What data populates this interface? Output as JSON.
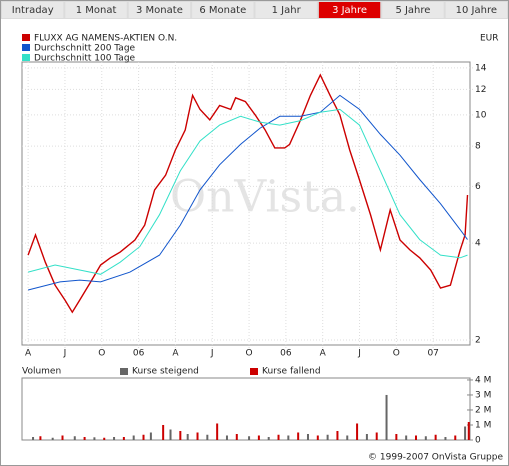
{
  "tabs": [
    "Intraday",
    "1 Monat",
    "3 Monate",
    "6 Monate",
    "1 Jahr",
    "3 Jahre",
    "5 Jahre",
    "10 Jahre"
  ],
  "active_tab": 5,
  "watermark": "OnVista.",
  "copyright": "© 1999-2007 OnVista Gruppe",
  "chart_data": [
    {
      "type": "line",
      "unit": "EUR",
      "log_scale": true,
      "grid": true,
      "xlim": [
        -0.5,
        36.0
      ],
      "ylim": [
        1.93,
        14.6
      ],
      "xticks": [
        {
          "value": 0,
          "label": "A"
        },
        {
          "value": 3,
          "label": "J"
        },
        {
          "value": 6,
          "label": "O"
        },
        {
          "value": 9,
          "label": "06"
        },
        {
          "value": 12,
          "label": "A"
        },
        {
          "value": 15,
          "label": "J"
        },
        {
          "value": 18,
          "label": "O"
        },
        {
          "value": 21,
          "label": "06"
        },
        {
          "value": 24,
          "label": "A"
        },
        {
          "value": 27,
          "label": "J"
        },
        {
          "value": 30,
          "label": "O"
        },
        {
          "value": 33,
          "label": "07"
        }
      ],
      "yticks": [
        2,
        4,
        6,
        8,
        10,
        12,
        14
      ],
      "series": [
        {
          "name": "FLUXX AG NAMENS-AKTIEN O.N.",
          "color": "#cc0000",
          "x": [
            0,
            0.6,
            1.4,
            2.2,
            3.0,
            3.6,
            4.2,
            5.1,
            5.9,
            6.7,
            7.5,
            8.7,
            9.5,
            10.3,
            11.2,
            12.0,
            12.8,
            13.4,
            14.0,
            14.8,
            15.6,
            16.5,
            16.9,
            17.7,
            18.5,
            19.3,
            20.1,
            20.9,
            21.3,
            22.2,
            23.0,
            23.8,
            24.6,
            25.4,
            26.2,
            27.0,
            27.9,
            28.7,
            29.5,
            30.3,
            31.1,
            31.9,
            32.8,
            33.6,
            34.4,
            35.2,
            35.6,
            35.8
          ],
          "values": [
            3.67,
            4.24,
            3.49,
            2.96,
            2.66,
            2.44,
            2.66,
            3.03,
            3.42,
            3.6,
            3.75,
            4.09,
            4.55,
            5.85,
            6.5,
            7.78,
            8.98,
            11.5,
            10.4,
            9.65,
            10.7,
            10.4,
            11.3,
            11.0,
            10.0,
            9.0,
            7.9,
            7.9,
            8.1,
            9.65,
            11.5,
            13.3,
            11.5,
            10.0,
            7.78,
            6.28,
            4.89,
            3.81,
            5.07,
            4.09,
            3.81,
            3.6,
            3.3,
            2.9,
            2.96,
            3.81,
            4.24,
            5.64
          ]
        },
        {
          "name": "Durchschnitt 200 Tage",
          "color": "#1155cc",
          "x": [
            0,
            2.6,
            4.2,
            5.9,
            8.3,
            10.7,
            12.4,
            14.0,
            15.6,
            17.3,
            18.9,
            20.5,
            22.2,
            23.8,
            25.4,
            27.0,
            28.7,
            30.3,
            31.9,
            33.6,
            35.2,
            35.8
          ],
          "values": [
            2.86,
            3.03,
            3.07,
            3.03,
            3.25,
            3.67,
            4.55,
            5.85,
            7.0,
            8.1,
            9.1,
            9.9,
            9.9,
            10.2,
            11.5,
            10.4,
            8.7,
            7.5,
            6.3,
            5.3,
            4.4,
            4.1
          ]
        },
        {
          "name": "Durchschnitt 100 Tage",
          "color": "#33e0c8",
          "x": [
            0,
            2.2,
            4.2,
            5.9,
            7.5,
            9.1,
            10.7,
            12.4,
            14.0,
            15.6,
            17.3,
            18.9,
            20.5,
            22.2,
            23.8,
            25.4,
            27.0,
            28.7,
            30.3,
            31.9,
            33.6,
            35.2,
            35.8
          ],
          "values": [
            3.25,
            3.42,
            3.3,
            3.2,
            3.49,
            3.9,
            4.9,
            6.7,
            8.3,
            9.3,
            9.9,
            9.5,
            9.3,
            9.6,
            10.2,
            10.4,
            9.3,
            6.7,
            4.9,
            4.1,
            3.67,
            3.6,
            3.67
          ]
        }
      ]
    },
    {
      "type": "bar",
      "title": "Volumen",
      "grid": false,
      "xlim": [
        -0.5,
        36.0
      ],
      "ylim": [
        0,
        4130000
      ],
      "yticks": [
        0,
        {
          "value": 1000000,
          "label": "1 M"
        },
        {
          "value": 2000000,
          "label": "2 M"
        },
        {
          "value": 3000000,
          "label": "3 M"
        },
        {
          "value": 4000000,
          "label": "4 M"
        }
      ],
      "series": [
        {
          "name": "Kurse steigend",
          "color": "#666666",
          "x": [
            0.4,
            2.0,
            3.8,
            5.4,
            7.0,
            8.6,
            10.0,
            11.6,
            13.0,
            14.6,
            16.2,
            18.0,
            19.6,
            21.2,
            22.8,
            24.4,
            26.0,
            27.6,
            29.2,
            30.8,
            32.4,
            34.0,
            35.6
          ],
          "values": [
            200000,
            150000,
            250000,
            180000,
            200000,
            300000,
            500000,
            700000,
            400000,
            350000,
            300000,
            250000,
            200000,
            300000,
            400000,
            350000,
            300000,
            400000,
            3000000,
            300000,
            250000,
            200000,
            900000
          ]
        },
        {
          "name": "Kurse fallend",
          "color": "#cc0000",
          "x": [
            1.0,
            2.8,
            4.6,
            6.2,
            7.8,
            9.4,
            11.0,
            12.4,
            13.8,
            15.4,
            17.0,
            18.8,
            20.4,
            22.0,
            23.6,
            25.2,
            26.8,
            28.4,
            30.0,
            31.6,
            33.2,
            34.8,
            35.9
          ],
          "values": [
            250000,
            300000,
            200000,
            150000,
            200000,
            350000,
            1000000,
            600000,
            500000,
            1100000,
            400000,
            300000,
            350000,
            500000,
            300000,
            600000,
            1100000,
            500000,
            400000,
            300000,
            350000,
            300000,
            1200000
          ]
        }
      ]
    }
  ]
}
